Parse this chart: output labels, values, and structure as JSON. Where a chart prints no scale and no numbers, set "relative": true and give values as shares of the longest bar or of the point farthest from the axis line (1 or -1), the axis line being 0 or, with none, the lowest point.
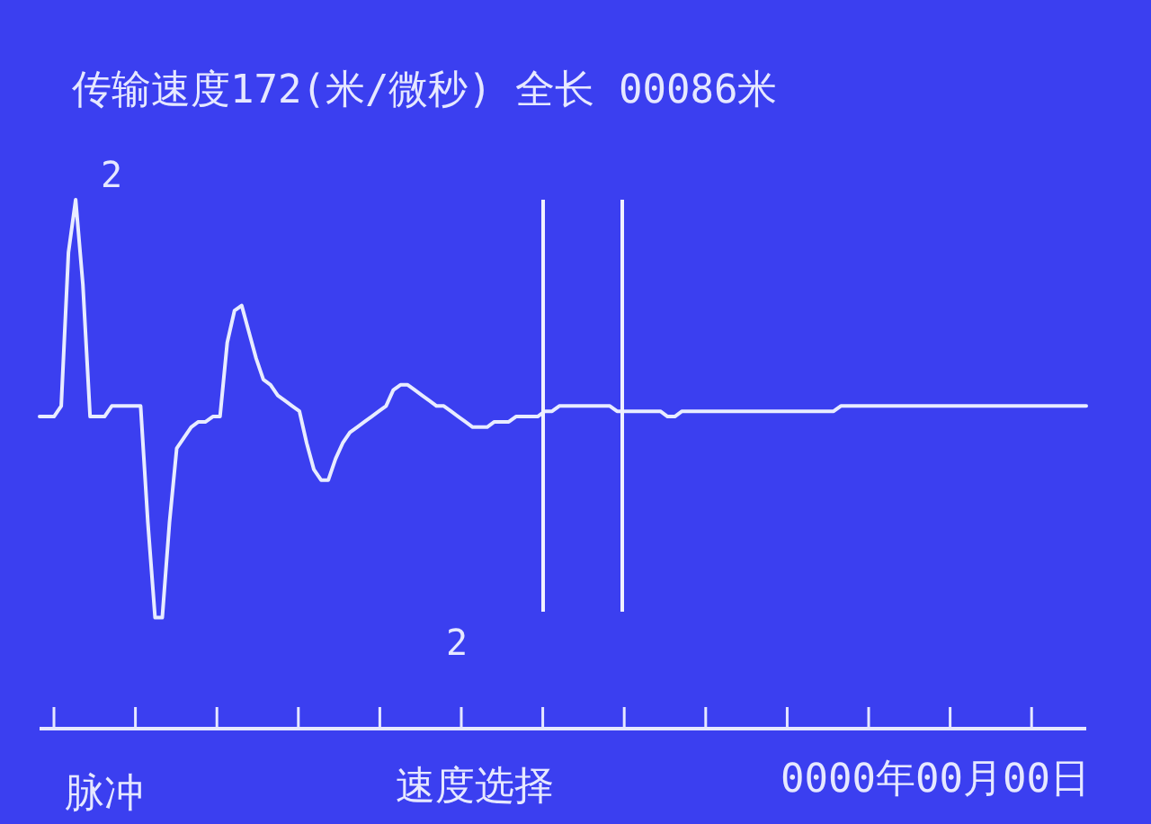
{
  "chart_data": {
    "type": "line",
    "title": "传输速度172(米/微秒)  全长  00086米",
    "relative": true,
    "categories": [
      null,
      null,
      null,
      null,
      null,
      null,
      null,
      null,
      null,
      null,
      null,
      null,
      null,
      null,
      null,
      null,
      null,
      null,
      null,
      null,
      null,
      null,
      null,
      null,
      null,
      null,
      null,
      null,
      null,
      null,
      null,
      null,
      null,
      null,
      null,
      null,
      null,
      null,
      null,
      null,
      null,
      null,
      null,
      null,
      null,
      null,
      null,
      null,
      null,
      null,
      null,
      null,
      null,
      null,
      null,
      null,
      null,
      null,
      null,
      null,
      null,
      null,
      null,
      null,
      null,
      null,
      null,
      null,
      null,
      null,
      null,
      null,
      null,
      null,
      null,
      null,
      null,
      null,
      null,
      null,
      null,
      null,
      null,
      null,
      null,
      null,
      null,
      null,
      null,
      null,
      null,
      null,
      null,
      null,
      null,
      null,
      null,
      null,
      null,
      null,
      null,
      null,
      null,
      null,
      null,
      null,
      null,
      null,
      null,
      null,
      null,
      null,
      null,
      null,
      null,
      null,
      null,
      null,
      null,
      null,
      null,
      null,
      null,
      null,
      null,
      null,
      null,
      null,
      null,
      null,
      null,
      null,
      null,
      null,
      null,
      null,
      null,
      null,
      null,
      null,
      null,
      null,
      null,
      null,
      null,
      null
    ],
    "series": [
      {
        "color": "#e8ecff",
        "values": [
          0.59,
          0.59,
          0.59,
          0.61,
          0.9,
          1,
          0.84,
          0.59,
          0.59,
          0.59,
          0.61,
          0.61,
          0.61,
          0.61,
          0.61,
          0.39,
          0.21,
          0.21,
          0.39,
          0.53,
          0.55,
          0.57,
          0.58,
          0.58,
          0.59,
          0.59,
          0.73,
          0.79,
          0.8,
          0.75,
          0.7,
          0.66,
          0.65,
          0.63,
          0.62,
          0.61,
          0.6,
          0.54,
          0.49,
          0.47,
          0.47,
          0.51,
          0.54,
          0.56,
          0.57,
          0.58,
          0.59,
          0.6,
          0.61,
          0.64,
          0.65,
          0.65,
          0.64,
          0.63,
          0.62,
          0.61,
          0.61,
          0.6,
          0.59,
          0.58,
          0.57,
          0.57,
          0.57,
          0.58,
          0.58,
          0.58,
          0.59,
          0.59,
          0.59,
          0.59,
          0.6,
          0.6,
          0.61,
          0.61,
          0.61,
          0.61,
          0.61,
          0.61,
          0.61,
          0.61,
          0.6,
          0.6,
          0.6,
          0.6,
          0.6,
          0.6,
          0.6,
          0.59,
          0.59,
          0.6,
          0.6,
          0.6,
          0.6,
          0.6,
          0.6,
          0.6,
          0.6,
          0.6,
          0.6,
          0.6,
          0.6,
          0.6,
          0.6,
          0.6,
          0.6,
          0.6,
          0.6,
          0.6,
          0.6,
          0.6,
          0.6,
          0.61,
          0.61,
          0.61,
          0.61,
          0.61,
          0.61,
          0.61,
          0.61,
          0.61,
          0.61,
          0.61,
          0.61,
          0.61,
          0.61,
          0.61,
          0.61,
          0.61,
          0.61,
          0.61,
          0.61,
          0.61,
          0.61,
          0.61,
          0.61,
          0.61,
          0.61,
          0.61,
          0.61,
          0.61,
          0.61,
          0.61,
          0.61,
          0.61,
          0.61,
          0.61
        ]
      }
    ],
    "annotations": [
      "2",
      "2",
      "脉冲",
      "速度选择",
      "0000年00月00日"
    ]
  }
}
